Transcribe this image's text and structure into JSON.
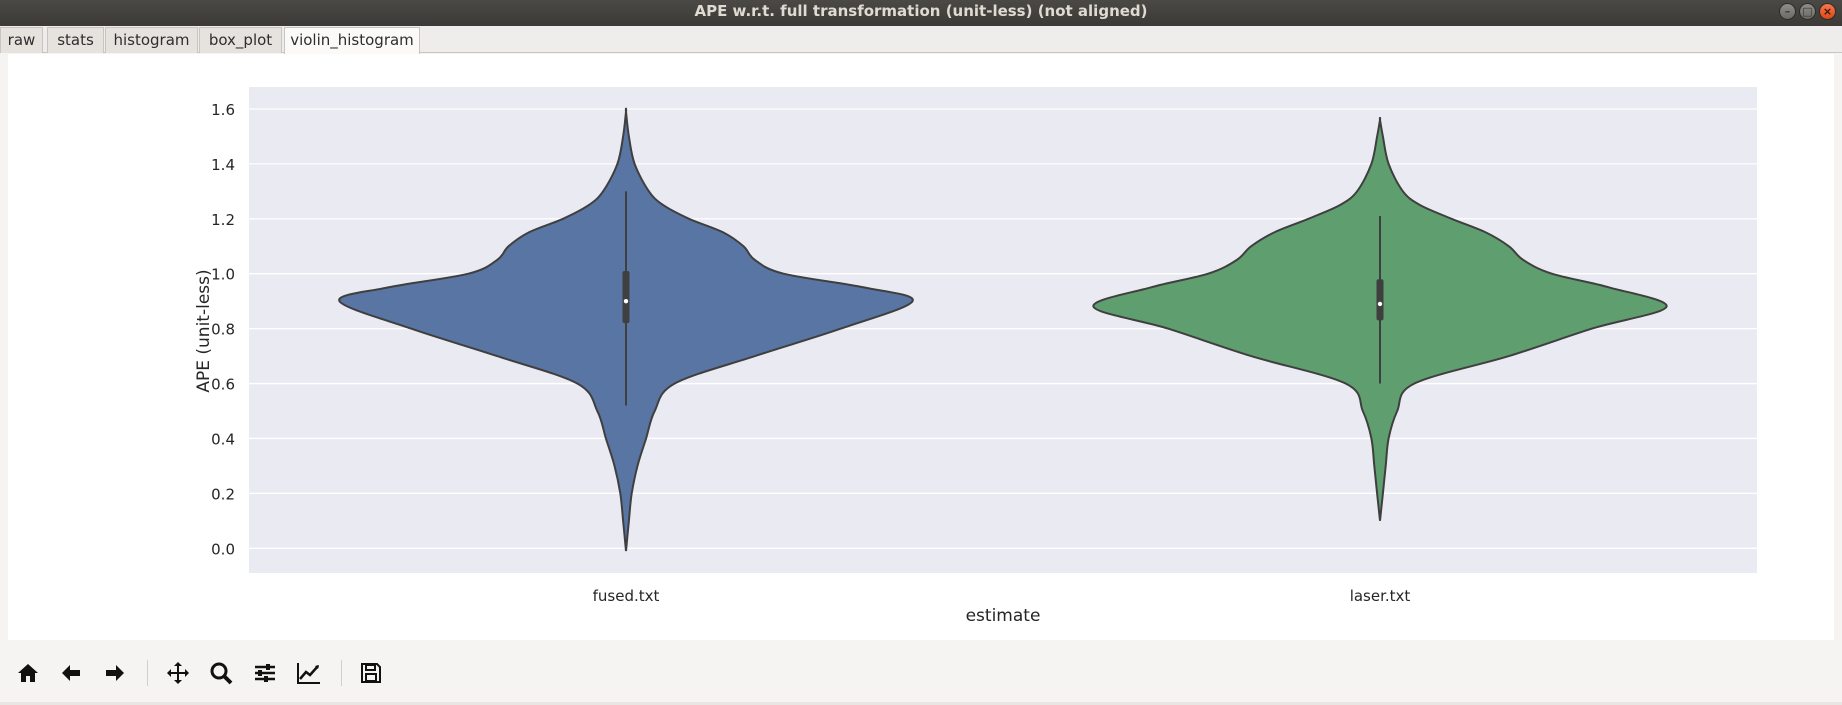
{
  "window": {
    "title": "APE w.r.t. full transformation (unit-less) (not aligned)"
  },
  "tabs": [
    {
      "label": "raw",
      "active": false
    },
    {
      "label": "stats",
      "active": false
    },
    {
      "label": "histogram",
      "active": false
    },
    {
      "label": "box_plot",
      "active": false
    },
    {
      "label": "violin_histogram",
      "active": true
    }
  ],
  "chart_data": {
    "type": "violin",
    "xlabel": "estimate",
    "ylabel": "APE (unit-less)",
    "ylim": [
      -0.09,
      1.68
    ],
    "yticks": [
      "0.0",
      "0.2",
      "0.4",
      "0.6",
      "0.8",
      "1.0",
      "1.2",
      "1.4",
      "1.6"
    ],
    "grid": true,
    "background": "#eaeaf2",
    "categories": [
      "fused.txt",
      "laser.txt"
    ],
    "series": [
      {
        "category": "fused.txt",
        "color": "#5975a4",
        "min": -0.01,
        "max": 1.59,
        "whisker_low": 0.52,
        "whisker_high": 1.3,
        "q1": 0.82,
        "median": 0.9,
        "q3": 1.01,
        "density_profile": [
          [
            -0.01,
            0.0
          ],
          [
            0.1,
            0.01
          ],
          [
            0.2,
            0.02
          ],
          [
            0.3,
            0.04
          ],
          [
            0.4,
            0.07
          ],
          [
            0.5,
            0.1
          ],
          [
            0.6,
            0.17
          ],
          [
            0.7,
            0.45
          ],
          [
            0.8,
            0.75
          ],
          [
            0.9,
            1.0
          ],
          [
            0.95,
            0.83
          ],
          [
            1.0,
            0.55
          ],
          [
            1.05,
            0.45
          ],
          [
            1.1,
            0.41
          ],
          [
            1.15,
            0.34
          ],
          [
            1.2,
            0.22
          ],
          [
            1.25,
            0.13
          ],
          [
            1.3,
            0.08
          ],
          [
            1.4,
            0.03
          ],
          [
            1.5,
            0.01
          ],
          [
            1.59,
            0.0
          ]
        ]
      },
      {
        "category": "laser.txt",
        "color": "#5f9e6e",
        "min": 0.1,
        "max": 1.56,
        "whisker_low": 0.6,
        "whisker_high": 1.21,
        "q1": 0.83,
        "median": 0.89,
        "q3": 0.98,
        "density_profile": [
          [
            0.1,
            0.0
          ],
          [
            0.2,
            0.01
          ],
          [
            0.3,
            0.02
          ],
          [
            0.4,
            0.03
          ],
          [
            0.5,
            0.06
          ],
          [
            0.6,
            0.12
          ],
          [
            0.7,
            0.45
          ],
          [
            0.8,
            0.74
          ],
          [
            0.88,
            1.0
          ],
          [
            0.95,
            0.8
          ],
          [
            1.0,
            0.6
          ],
          [
            1.05,
            0.5
          ],
          [
            1.1,
            0.45
          ],
          [
            1.15,
            0.37
          ],
          [
            1.2,
            0.25
          ],
          [
            1.25,
            0.14
          ],
          [
            1.3,
            0.08
          ],
          [
            1.4,
            0.03
          ],
          [
            1.5,
            0.01
          ],
          [
            1.56,
            0.0
          ]
        ]
      }
    ]
  },
  "toolbar": {
    "buttons": [
      {
        "name": "home-icon",
        "tool": "home"
      },
      {
        "name": "back-arrow-icon",
        "tool": "back"
      },
      {
        "name": "forward-arrow-icon",
        "tool": "forward"
      },
      {
        "name": "pan-icon",
        "tool": "pan"
      },
      {
        "name": "zoom-icon",
        "tool": "zoom"
      },
      {
        "name": "subplots-icon",
        "tool": "subplots"
      },
      {
        "name": "edit-axis-icon",
        "tool": "edit"
      },
      {
        "name": "save-icon",
        "tool": "save"
      }
    ]
  }
}
